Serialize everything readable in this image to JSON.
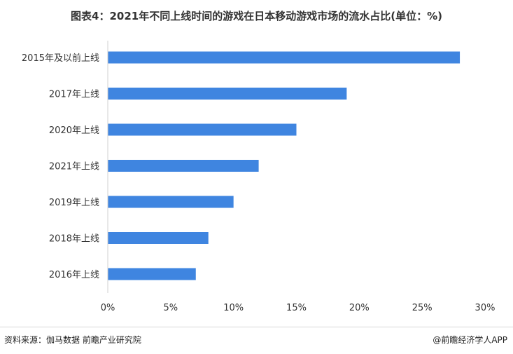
{
  "chart_data": {
    "type": "bar",
    "orientation": "horizontal",
    "title": "图表4：2021年不同上线时间的游戏在日本移动游戏市场的流水占比(单位：%)",
    "categories": [
      "2015年及以前上线",
      "2017年上线",
      "2020年上线",
      "2021年上线",
      "2019年上线",
      "2018年上线",
      "2016年上线"
    ],
    "values": [
      28,
      19,
      15,
      12,
      10,
      8,
      7
    ],
    "xlim": [
      0,
      30
    ],
    "xticks": [
      "0%",
      "5%",
      "10%",
      "15%",
      "20%",
      "25%",
      "30%"
    ],
    "grid": false,
    "bar_color": "#3f85e0"
  },
  "footer": {
    "source": "资料来源：伽马数据 前瞻产业研究院",
    "brand": "@前瞻经济学人APP"
  }
}
